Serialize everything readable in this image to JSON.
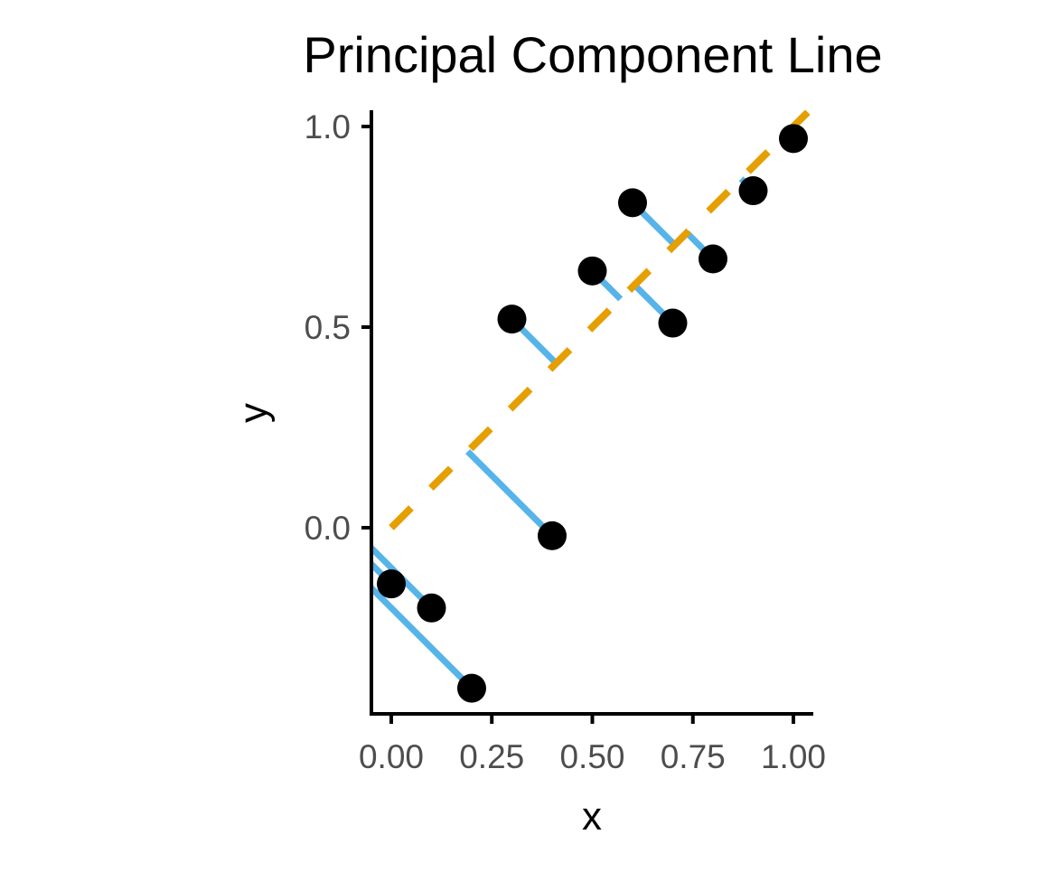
{
  "chart_data": {
    "type": "scatter",
    "title": "Principal Component Line",
    "xlabel": "x",
    "ylabel": "y",
    "xlim": [
      -0.05,
      1.05
    ],
    "ylim": [
      -0.46,
      1.03
    ],
    "x_ticks": [
      0.0,
      0.25,
      0.5,
      0.75,
      1.0
    ],
    "x_tick_labels": [
      "0.00",
      "0.25",
      "0.50",
      "0.75",
      "1.00"
    ],
    "y_ticks": [
      0.0,
      0.5,
      1.0
    ],
    "y_tick_labels": [
      "0.0",
      "0.5",
      "1.0"
    ],
    "grid": false,
    "points": {
      "x": [
        0.0,
        0.1,
        0.2,
        0.3,
        0.4,
        0.5,
        0.6,
        0.7,
        0.8,
        0.9,
        1.0
      ],
      "y": [
        -0.14,
        -0.2,
        -0.4,
        0.52,
        -0.02,
        0.64,
        0.81,
        0.51,
        0.67,
        0.84,
        0.97
      ]
    },
    "principal_component_line": {
      "intercept": 0.0,
      "slope": 1.0
    },
    "colors": {
      "points": "#000000",
      "pc_line": "#e69f00",
      "projections": "#56b4e9",
      "axis": "#000000",
      "tick_labels": "#4d4d4d"
    }
  }
}
